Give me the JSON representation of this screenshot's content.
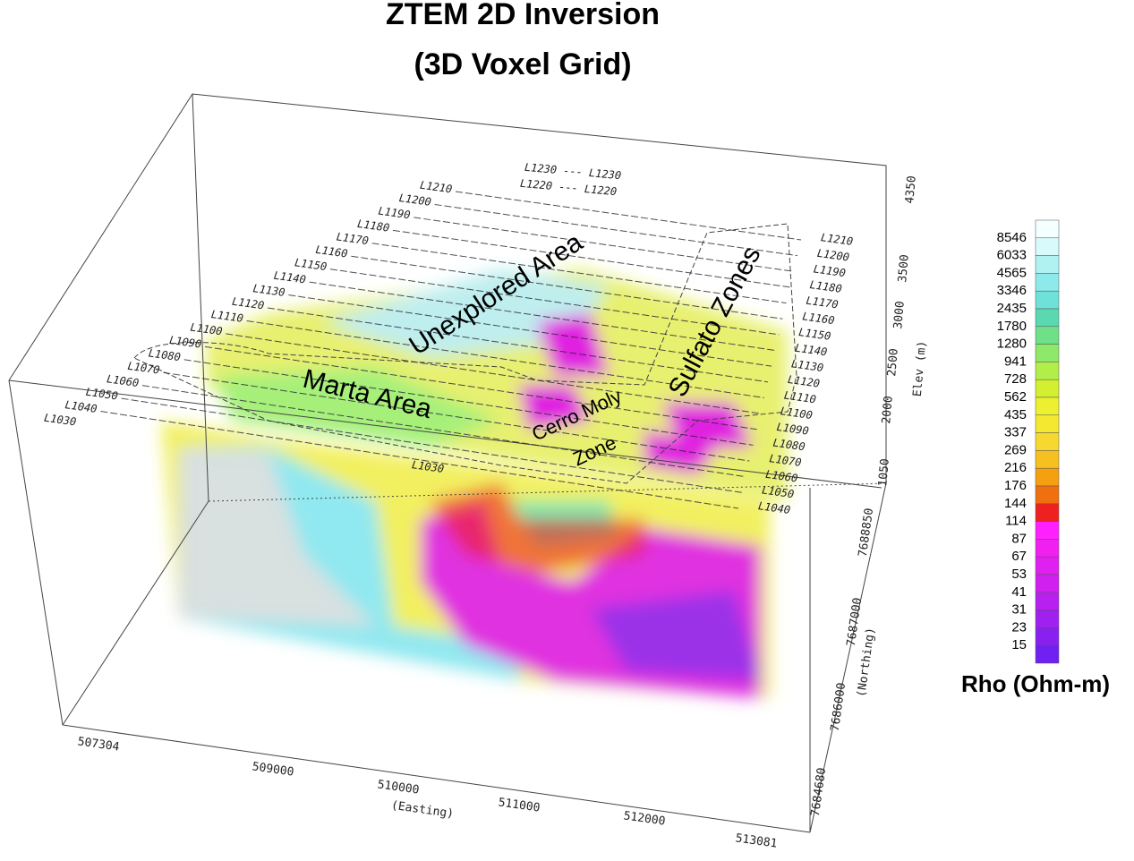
{
  "title": [
    "ZTEM 2D Inversion",
    "(3D Voxel Grid)"
  ],
  "annotations": [
    "Unexplored Area",
    "Marta Area",
    "Cerro Moly",
    "Zone",
    "Sulfato Zones"
  ],
  "easting": {
    "label": "(Easting)",
    "ticks": [
      "507304",
      "509000",
      "510000",
      "511000",
      "512000",
      "513081"
    ]
  },
  "northing": {
    "label": "(Northing)",
    "ticks": [
      "7688850",
      "7687000",
      "7686000",
      "7684680"
    ]
  },
  "elevation": {
    "label": "Elev (m)",
    "ticks": [
      "4350",
      "3500",
      "3000",
      "2500",
      "2000",
      "1050"
    ]
  },
  "survey_lines": {
    "top_pairs": [
      "L1230 --- L1230",
      "L1220 --- L1220"
    ],
    "left": [
      "L1210",
      "L1200",
      "L1190",
      "L1180",
      "L1170",
      "L1160",
      "L1150",
      "L1140",
      "L1130",
      "L1120",
      "L1110",
      "L1100",
      "L1090",
      "L1080",
      "L1070",
      "L1060",
      "L1050",
      "L1040",
      "L1030"
    ],
    "right": [
      "L1210",
      "L1200",
      "L1190",
      "L1180",
      "L1170",
      "L1160",
      "L1150",
      "L1140",
      "L1130",
      "L1120",
      "L1110",
      "L1100",
      "L1090",
      "L1080",
      "L1070",
      "L1060",
      "L1050",
      "L1040"
    ],
    "middle": "L1030"
  },
  "colorbar": {
    "title": "Rho (Ohm-m)",
    "labels": [
      "8546",
      "6033",
      "4565",
      "3346",
      "2435",
      "1780",
      "1280",
      "941",
      "728",
      "562",
      "435",
      "337",
      "269",
      "216",
      "176",
      "144",
      "114",
      "87",
      "67",
      "53",
      "41",
      "31",
      "23",
      "15"
    ],
    "colors": [
      "#f4ffff",
      "#d8fafa",
      "#b0f2f2",
      "#8eeaea",
      "#6ee2d8",
      "#5ad8b0",
      "#6ee088",
      "#8ee86a",
      "#b2ee4a",
      "#d2f030",
      "#ecf030",
      "#f4e830",
      "#f6d830",
      "#f6c020",
      "#f4a010",
      "#f07010",
      "#ee2020",
      "#ff20ff",
      "#f020f0",
      "#e020f0",
      "#d020f0",
      "#b820f0",
      "#a020f0",
      "#8a20f0",
      "#7020f0"
    ]
  }
}
